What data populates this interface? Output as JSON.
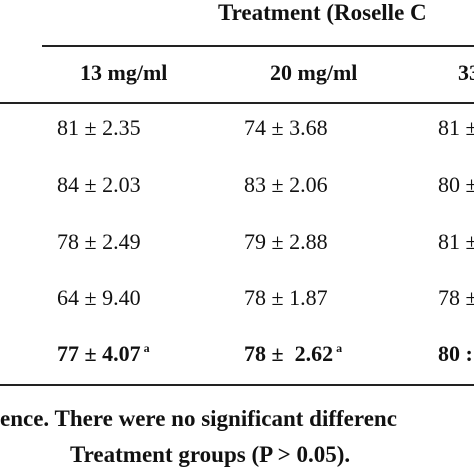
{
  "table": {
    "group_header": "Treatment (Roselle C",
    "columns": [
      "13 mg/ml",
      "20 mg/ml",
      "33"
    ],
    "rows": [
      [
        "81 ± 2.35",
        "74 ± 3.68",
        "81 ±"
      ],
      [
        "84 ± 2.03",
        "83 ± 2.06",
        "80 ±"
      ],
      [
        "78 ± 2.49",
        "79 ± 2.88",
        "81 ±"
      ],
      [
        "64 ± 9.40",
        "78 ± 1.87",
        "78 ±"
      ]
    ],
    "mean_row": [
      {
        "value": "77 ± 4.07",
        "sup": "a"
      },
      {
        "value": "78 ±  2.62",
        "sup": "a"
      },
      {
        "value": "80 :",
        "sup": ""
      }
    ]
  },
  "footnote": {
    "line1": "ence. There were no significant differenc",
    "line2": "Treatment groups (P > 0.05)."
  }
}
